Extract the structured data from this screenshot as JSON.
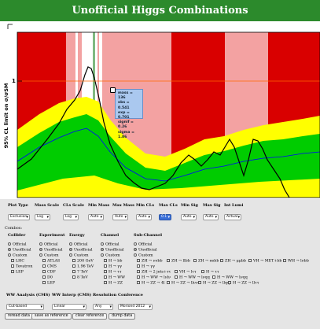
{
  "title": "Unofficial Higgs Combinations",
  "colors": {
    "title_bg": "#2c8a2c",
    "excl_dark": "#d90000",
    "excl_light": "#f3a2a2",
    "band2": "#ffff00",
    "band1": "#00cc00",
    "expected": "#0000ff",
    "observed": "#000000",
    "ref_line": "#ff6600"
  },
  "chart_data": {
    "type": "line",
    "ylabel": "95% CL limit on σ/σSM",
    "ytick_labels": [
      "1"
    ],
    "scale": "log",
    "reference_line": 1,
    "annotation": {
      "mass": "mass = 136",
      "obs": "obs = 0.541",
      "exp": "exp = 0.701",
      "signif": "signif = 0.26",
      "sigma": "sigma = 1.86"
    }
  },
  "controls_header": {
    "plot_type": "Plot Type",
    "mass_scale": "Mass Scale",
    "cls_scale": "CLs Scale",
    "min_mass": "Min Mass",
    "max_mass": "Max Mass",
    "min_cls": "Min CLs",
    "max_cls": "Max CLs",
    "min_sig": "Min Sig",
    "max_sig": "Max Sig",
    "int_lumi": "Int Lumi"
  },
  "controls_values": {
    "plot_type": "Exclusion",
    "mass_scale": "Log",
    "cls_scale": "Log",
    "min_mass": "Auto",
    "max_mass": "Auto",
    "min_cls": "Auto",
    "max_cls": "0.1",
    "min_sig": "Auto",
    "max_sig": "Auto",
    "int_lumi": "Actual"
  },
  "combos_label": "Combos:",
  "collider": {
    "header": "Collider",
    "items": [
      "Official",
      "Unofficial",
      "Custom",
      "LHC",
      "Tevatron",
      "LEP"
    ]
  },
  "experiment": {
    "header": "Experiment",
    "items": [
      "Official",
      "Unofficial",
      "Custom",
      "ATLAS",
      "CMS",
      "CDF",
      "D0",
      "LEP"
    ]
  },
  "energy": {
    "header": "Energy",
    "items": [
      "Official",
      "Unofficial",
      "Custom",
      "200 GeV",
      "1.96 TeV",
      "7 TeV",
      "8 TeV"
    ]
  },
  "channel": {
    "header": "Channel",
    "items": [
      "Official",
      "Unofficial",
      "Custom",
      "H → bb",
      "H → γγ",
      "H → ττ",
      "H → WW",
      "H → ZZ"
    ]
  },
  "subchannel": {
    "header": "Sub-Channel",
    "items": [
      "Official",
      "Unofficial",
      "Custom"
    ],
    "row1": [
      "ZH → ννbb",
      "ZH → llbb",
      "ZH → eebb",
      "ZH → μμbb",
      "VH → MET+bb",
      "WH → lνbb"
    ],
    "row2": [
      "H → γγ"
    ],
    "row3": [
      "ZH → 2 jets+ττ",
      "VH → lττ",
      "H → ττ"
    ],
    "row4": [
      "H → WW → lνlν",
      "H → WW → lνqq",
      "H → WW → lνqq"
    ],
    "row5": [
      "H → ZZ → 4l",
      "H → ZZ → llνν",
      "H → ZZ → llqq",
      "H → ZZ → llττ"
    ]
  },
  "bottom": {
    "ww_analysis_label": "WW Analysis (CMS)",
    "ww_interp_label": "WW Interp (CMS)",
    "resolution_label": "Resolution",
    "conference_label": "Conference",
    "ww_analysis": "Cut-based",
    "ww_interp": "Linear",
    "resolution": "Any",
    "conference": "Moriond 2012"
  },
  "buttons": [
    "reread data",
    "save as reference",
    "clear reference",
    "dump data"
  ]
}
